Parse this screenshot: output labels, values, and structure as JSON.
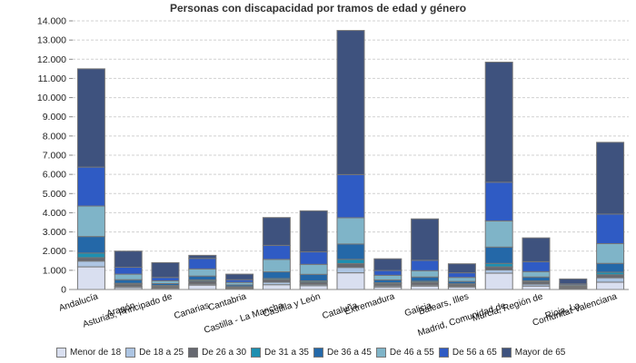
{
  "chart_data": {
    "type": "bar",
    "stacked": true,
    "title": "Personas con discapacidad por tramos de edad y género",
    "xlabel": "",
    "ylabel": "",
    "ylim": [
      0,
      14000
    ],
    "y_ticks": [
      0,
      1000,
      2000,
      3000,
      4000,
      5000,
      6000,
      7000,
      8000,
      9000,
      10000,
      11000,
      12000,
      13000,
      14000
    ],
    "y_tick_labels": [
      "0",
      "1.000",
      "2.000",
      "3.000",
      "4.000",
      "5.000",
      "6.000",
      "7.000",
      "8.000",
      "9.000",
      "10.000",
      "11.000",
      "12.000",
      "13.000",
      "14.000"
    ],
    "grid": true,
    "legend_position": "bottom",
    "categories": [
      "Andalucía",
      "Aragón",
      "Asturias, Principado de",
      "Canarias",
      "Cantabria",
      "Castilla - La Mancha",
      "Castilla y León",
      "Cataluña",
      "Extremadura",
      "Galicia",
      "Balears, Illes",
      "Madrid, Comunidad de",
      "Murcia, Región de",
      "Rioja, La",
      "Comunitat Valenciana"
    ],
    "series": [
      {
        "name": "Menor de 18",
        "color": "#d9dff0",
        "values": [
          1180,
          100,
          60,
          230,
          40,
          250,
          200,
          870,
          130,
          180,
          130,
          850,
          180,
          30,
          380
        ]
      },
      {
        "name": "De 18 a 25",
        "color": "#adc5e3",
        "values": [
          300,
          60,
          40,
          60,
          30,
          130,
          70,
          280,
          60,
          60,
          50,
          170,
          100,
          20,
          230
        ]
      },
      {
        "name": "De 26 a 30",
        "color": "#666870",
        "values": [
          180,
          120,
          70,
          150,
          50,
          130,
          120,
          200,
          110,
          130,
          80,
          160,
          120,
          60,
          160
        ]
      },
      {
        "name": "De 31 a 35",
        "color": "#1e8fb0",
        "values": [
          240,
          40,
          40,
          60,
          30,
          60,
          60,
          220,
          50,
          60,
          40,
          180,
          50,
          20,
          130
        ]
      },
      {
        "name": "De 36 a 45",
        "color": "#2468a8",
        "values": [
          860,
          190,
          100,
          200,
          90,
          350,
          340,
          800,
          150,
          220,
          120,
          850,
          200,
          40,
          460
        ]
      },
      {
        "name": "De 46 a 55",
        "color": "#7fb4c8",
        "values": [
          1590,
          290,
          140,
          370,
          130,
          650,
          520,
          1370,
          240,
          330,
          210,
          1360,
          280,
          60,
          1030
        ]
      },
      {
        "name": "De 56 a 65",
        "color": "#2f5bc4",
        "values": [
          2030,
          360,
          180,
          550,
          140,
          730,
          650,
          2250,
          250,
          540,
          240,
          2020,
          520,
          60,
          1540
        ]
      },
      {
        "name": "Mayor de 65",
        "color": "#3e527e",
        "values": [
          5120,
          840,
          770,
          160,
          290,
          1450,
          2140,
          7510,
          610,
          2160,
          470,
          6260,
          1240,
          260,
          3740
        ]
      }
    ]
  }
}
